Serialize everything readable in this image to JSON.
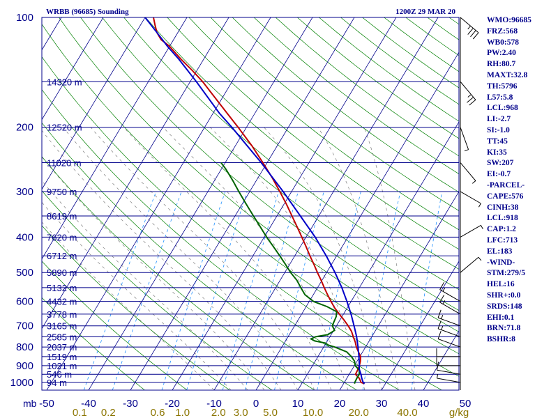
{
  "header": {
    "station_title": "WRBB (96685) Sounding",
    "valid_time": "1200Z 29 MAR 20"
  },
  "indices": [
    "WMO:96685",
    "FRZ:568",
    "WB0:578",
    "PW:2.40",
    "RH:80.7",
    "MAXT:32.8",
    "TH:5796",
    "L57:5.8",
    "LCL:968",
    "LI:-2.7",
    "SI:-1.0",
    "TT:45",
    "KI:35",
    "SW:207",
    "EI:-0.7",
    "-PARCEL-",
    "CAPE:576",
    "CINH:38",
    "LCL:918",
    "CAP:1.2",
    "LFC:713",
    "EL:183",
    "-WIND-",
    "STM:279/5",
    "HEL:16",
    "SHR+:0.0",
    "SRDS:148",
    "EHI:0.1",
    "BRN:71.8",
    "BSHR:8"
  ],
  "colors": {
    "frame": "#00008b",
    "isobar": "#00008b",
    "isotherm": "#00008b",
    "dry_adiabat": "#008000",
    "moist_adiabat": "#7f7f7f",
    "mixing_ratio": "#1e90ff",
    "temperature": "#c00000",
    "dewpoint": "#006400",
    "parcel": "#0000c8",
    "label_text": "#00008b",
    "mixing_text": "#8b7500"
  },
  "chart_data": {
    "type": "skew-t log-p",
    "xlabel_unit": "mb",
    "mixing_unit": "g/kg",
    "pressure_ticks": [
      {
        "p": 100,
        "label": "100"
      },
      {
        "p": 200,
        "label": "200"
      },
      {
        "p": 300,
        "label": "300"
      },
      {
        "p": 400,
        "label": "400"
      },
      {
        "p": 500,
        "label": "500"
      },
      {
        "p": 600,
        "label": "600"
      },
      {
        "p": 700,
        "label": "700"
      },
      {
        "p": 800,
        "label": "800"
      },
      {
        "p": 900,
        "label": "900"
      },
      {
        "p": 1000,
        "label": "1000"
      }
    ],
    "temperature_ticks": [
      {
        "t": -50,
        "label": "-50"
      },
      {
        "t": -40,
        "label": "-40"
      },
      {
        "t": -30,
        "label": "-30"
      },
      {
        "t": -20,
        "label": "-20"
      },
      {
        "t": -10,
        "label": "-10"
      },
      {
        "t": 0,
        "label": "0"
      },
      {
        "t": 10,
        "label": "10"
      },
      {
        "t": 20,
        "label": "20"
      },
      {
        "t": 30,
        "label": "30"
      },
      {
        "t": 40,
        "label": "40"
      },
      {
        "t": 50,
        "label": "50"
      }
    ],
    "mixing_ratio_ticks": [
      {
        "w": 0.1,
        "label": "0.1"
      },
      {
        "w": 0.2,
        "label": "0.2"
      },
      {
        "w": 0.6,
        "label": "0.6"
      },
      {
        "w": 1.0,
        "label": "1.0"
      },
      {
        "w": 2.0,
        "label": "2.0"
      },
      {
        "w": 3.0,
        "label": "3.0"
      },
      {
        "w": 5.0,
        "label": "5.0"
      },
      {
        "w": 10.0,
        "label": "10.0"
      },
      {
        "w": 20.0,
        "label": "20.0"
      },
      {
        "w": 40.0,
        "label": "40.0"
      }
    ],
    "height_levels": [
      {
        "p": 150,
        "label": "14320 m"
      },
      {
        "p": 200,
        "label": "12520 m"
      },
      {
        "p": 250,
        "label": "11020 m"
      },
      {
        "p": 300,
        "label": "9750 m"
      },
      {
        "p": 350,
        "label": "8619 m"
      },
      {
        "p": 400,
        "label": "7620 m"
      },
      {
        "p": 450,
        "label": "6712 m"
      },
      {
        "p": 500,
        "label": "5890 m"
      },
      {
        "p": 550,
        "label": "5132 m"
      },
      {
        "p": 600,
        "label": "4432 m"
      },
      {
        "p": 650,
        "label": "3778 m"
      },
      {
        "p": 700,
        "label": "3165 m"
      },
      {
        "p": 750,
        "label": "2585 m"
      },
      {
        "p": 800,
        "label": "2037 m"
      },
      {
        "p": 850,
        "label": "1519 m"
      },
      {
        "p": 900,
        "label": "1021 m"
      },
      {
        "p": 950,
        "label": "546 m"
      },
      {
        "p": 1000,
        "label": "94 m"
      }
    ],
    "series": [
      {
        "key": "temperature",
        "points": [
          [
            1008,
            25.0
          ],
          [
            1000,
            24.0
          ],
          [
            975,
            23.0
          ],
          [
            950,
            21.5
          ],
          [
            925,
            21.4
          ],
          [
            900,
            21.2
          ],
          [
            875,
            20.8
          ],
          [
            850,
            20.2
          ],
          [
            825,
            19.0
          ],
          [
            800,
            17.8
          ],
          [
            775,
            16.8
          ],
          [
            750,
            15.6
          ],
          [
            725,
            14.4
          ],
          [
            700,
            12.8
          ],
          [
            675,
            11.0
          ],
          [
            650,
            9.0
          ],
          [
            625,
            7.0
          ],
          [
            600,
            5.2
          ],
          [
            575,
            3.4
          ],
          [
            550,
            1.6
          ],
          [
            525,
            -0.2
          ],
          [
            500,
            -2.2
          ],
          [
            475,
            -4.2
          ],
          [
            450,
            -6.4
          ],
          [
            425,
            -8.6
          ],
          [
            400,
            -11.0
          ],
          [
            375,
            -13.6
          ],
          [
            350,
            -16.4
          ],
          [
            325,
            -19.4
          ],
          [
            300,
            -22.8
          ],
          [
            275,
            -26.6
          ],
          [
            250,
            -31.0
          ],
          [
            225,
            -36.0
          ],
          [
            200,
            -42.0
          ],
          [
            175,
            -49.0
          ],
          [
            150,
            -57.0
          ],
          [
            140,
            -61.0
          ],
          [
            130,
            -65.5
          ],
          [
            120,
            -70.0
          ],
          [
            115,
            -73.0
          ],
          [
            110,
            -75.0
          ],
          [
            105,
            -76.5
          ],
          [
            100,
            -78.0
          ]
        ]
      },
      {
        "key": "dewpoint",
        "points": [
          [
            1008,
            22.6
          ],
          [
            1000,
            22.5
          ],
          [
            975,
            22.4
          ],
          [
            950,
            22.4
          ],
          [
            925,
            21.8
          ],
          [
            900,
            20.2
          ],
          [
            875,
            19.4
          ],
          [
            850,
            18.0
          ],
          [
            825,
            16.2
          ],
          [
            800,
            12.6
          ],
          [
            790,
            10.8
          ],
          [
            780,
            9.8
          ],
          [
            770,
            7.0
          ],
          [
            760,
            5.8
          ],
          [
            750,
            6.6
          ],
          [
            740,
            9.2
          ],
          [
            720,
            10.2
          ],
          [
            700,
            9.0
          ],
          [
            680,
            8.8
          ],
          [
            660,
            8.6
          ],
          [
            640,
            8.0
          ],
          [
            620,
            5.0
          ],
          [
            600,
            1.0
          ],
          [
            575,
            -2.0
          ],
          [
            550,
            -4.0
          ],
          [
            525,
            -6.0
          ],
          [
            500,
            -8.6
          ],
          [
            475,
            -11.0
          ],
          [
            450,
            -13.6
          ],
          [
            425,
            -16.4
          ],
          [
            400,
            -19.4
          ],
          [
            375,
            -22.4
          ],
          [
            350,
            -25.6
          ],
          [
            325,
            -29.0
          ],
          [
            300,
            -32.6
          ],
          [
            280,
            -35.6
          ],
          [
            260,
            -39.0
          ],
          [
            250,
            -41.0
          ]
        ]
      },
      {
        "key": "parcel",
        "points": [
          [
            1008,
            25.0
          ],
          [
            1000,
            24.5
          ],
          [
            975,
            23.6
          ],
          [
            950,
            22.8
          ],
          [
            918,
            21.6
          ],
          [
            900,
            21.2
          ],
          [
            850,
            19.8
          ],
          [
            800,
            18.2
          ],
          [
            750,
            16.4
          ],
          [
            713,
            14.8
          ],
          [
            700,
            14.2
          ],
          [
            650,
            11.8
          ],
          [
            600,
            9.0
          ],
          [
            550,
            5.8
          ],
          [
            500,
            2.0
          ],
          [
            450,
            -2.5
          ],
          [
            400,
            -7.8
          ],
          [
            350,
            -14.4
          ],
          [
            300,
            -22.0
          ],
          [
            250,
            -31.4
          ],
          [
            200,
            -43.5
          ],
          [
            183,
            -48.5
          ],
          [
            150,
            -58.5
          ],
          [
            130,
            -66.0
          ],
          [
            120,
            -70.5
          ],
          [
            110,
            -75.0
          ],
          [
            100,
            -80.0
          ]
        ]
      }
    ],
    "wind_barbs": [
      {
        "p": 1000,
        "dir": 280,
        "spd": 5
      },
      {
        "p": 950,
        "dir": 280,
        "spd": 10
      },
      {
        "p": 900,
        "dir": 270,
        "spd": 10
      },
      {
        "p": 850,
        "dir": 270,
        "spd": 10
      },
      {
        "p": 800,
        "dir": 290,
        "spd": 10
      },
      {
        "p": 750,
        "dir": 290,
        "spd": 15
      },
      {
        "p": 700,
        "dir": 290,
        "spd": 15
      },
      {
        "p": 650,
        "dir": 300,
        "spd": 15
      },
      {
        "p": 600,
        "dir": 300,
        "spd": 15
      },
      {
        "p": 500,
        "dir": 50,
        "spd": 5
      },
      {
        "p": 400,
        "dir": 60,
        "spd": 5
      },
      {
        "p": 300,
        "dir": 120,
        "spd": 5
      },
      {
        "p": 250,
        "dir": 140,
        "spd": 5
      },
      {
        "p": 200,
        "dir": 160,
        "spd": 5
      },
      {
        "p": 150,
        "dir": 140,
        "spd": 25
      },
      {
        "p": 100,
        "dir": 130,
        "spd": 35
      }
    ]
  }
}
